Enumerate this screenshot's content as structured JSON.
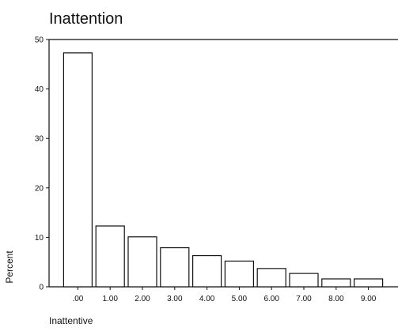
{
  "chart_data": {
    "type": "bar",
    "title": "Inattention",
    "xlabel": "Inattentive",
    "ylabel": "Percent",
    "categories": [
      ".00",
      "1.00",
      "2.00",
      "3.00",
      "4.00",
      "5.00",
      "6.00",
      "7.00",
      "8.00",
      "9.00"
    ],
    "values": [
      47.3,
      12.3,
      10.1,
      7.9,
      6.3,
      5.2,
      3.7,
      2.7,
      1.6,
      1.6
    ],
    "ylim": [
      0,
      50
    ],
    "yticks": [
      "0",
      "10",
      "20",
      "30",
      "40",
      "50"
    ],
    "grid": false,
    "legend": "none",
    "bar_fill": "#ffffff",
    "bar_stroke": "#111111",
    "axis_color": "#111111"
  }
}
